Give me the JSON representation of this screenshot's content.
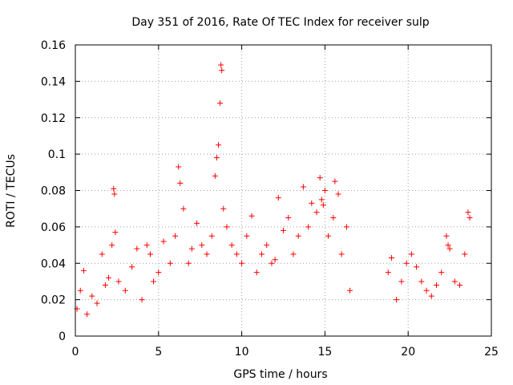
{
  "chart_data": {
    "type": "scatter",
    "title": "Day 351 of 2016, Rate Of TEC Index for receiver sulp",
    "xlabel": "GPS time / hours",
    "ylabel": "ROTI / TECUs",
    "xlim": [
      0,
      25
    ],
    "ylim": [
      0,
      0.16
    ],
    "xticks": [
      0,
      5,
      10,
      15,
      20,
      25
    ],
    "yticks": [
      0,
      0.02,
      0.04,
      0.06,
      0.08,
      0.1,
      0.12,
      0.14,
      0.16
    ],
    "xtick_labels": [
      "0",
      "5",
      "10",
      "15",
      "20",
      "25"
    ],
    "ytick_labels": [
      "0",
      "0.02",
      "0.04",
      "0.06",
      "0.08",
      "0.1",
      "0.12",
      "0.14",
      "0.16"
    ],
    "grid": true,
    "marker": "+",
    "color": "#ff0000",
    "series": [
      {
        "x": [
          0.1,
          0.3,
          0.5,
          0.7,
          1.0,
          1.3,
          1.6,
          1.8,
          2.0,
          2.2,
          2.3,
          2.35,
          2.4,
          2.6,
          3.0,
          3.4,
          3.7,
          4.0,
          4.3,
          4.5,
          4.7,
          5.0,
          5.3,
          5.7,
          6.0,
          6.2,
          6.3,
          6.5,
          6.8,
          7.0,
          7.3,
          7.6,
          7.9,
          8.2,
          8.4,
          8.5,
          8.6,
          8.7,
          8.75,
          8.8,
          8.9,
          9.1,
          9.4,
          9.7,
          10.0,
          10.3,
          10.6,
          10.9,
          11.2,
          11.5,
          11.8,
          12.0,
          12.2,
          12.5,
          12.8,
          13.1,
          13.4,
          13.7,
          14.0,
          14.2,
          14.5,
          14.7,
          14.8,
          14.9,
          15.0,
          15.2,
          15.5,
          15.6,
          15.8,
          16.0,
          16.3,
          16.5,
          18.8,
          19.0,
          19.3,
          19.6,
          19.9,
          20.2,
          20.5,
          20.8,
          21.1,
          21.4,
          21.7,
          22.0,
          22.3,
          22.4,
          22.5,
          22.8,
          23.1,
          23.4,
          23.6,
          23.7
        ],
        "y": [
          0.015,
          0.025,
          0.036,
          0.012,
          0.022,
          0.018,
          0.045,
          0.028,
          0.032,
          0.05,
          0.081,
          0.078,
          0.057,
          0.03,
          0.025,
          0.038,
          0.048,
          0.02,
          0.05,
          0.045,
          0.03,
          0.035,
          0.052,
          0.04,
          0.055,
          0.093,
          0.084,
          0.07,
          0.04,
          0.048,
          0.062,
          0.05,
          0.045,
          0.055,
          0.088,
          0.098,
          0.105,
          0.128,
          0.149,
          0.146,
          0.07,
          0.06,
          0.05,
          0.045,
          0.04,
          0.055,
          0.066,
          0.035,
          0.045,
          0.05,
          0.04,
          0.042,
          0.076,
          0.058,
          0.065,
          0.045,
          0.055,
          0.082,
          0.06,
          0.073,
          0.068,
          0.087,
          0.075,
          0.072,
          0.08,
          0.055,
          0.065,
          0.085,
          0.078,
          0.045,
          0.06,
          0.025,
          0.035,
          0.043,
          0.02,
          0.03,
          0.04,
          0.045,
          0.038,
          0.03,
          0.025,
          0.022,
          0.028,
          0.035,
          0.055,
          0.05,
          0.048,
          0.03,
          0.028,
          0.045,
          0.068,
          0.065
        ]
      }
    ]
  }
}
